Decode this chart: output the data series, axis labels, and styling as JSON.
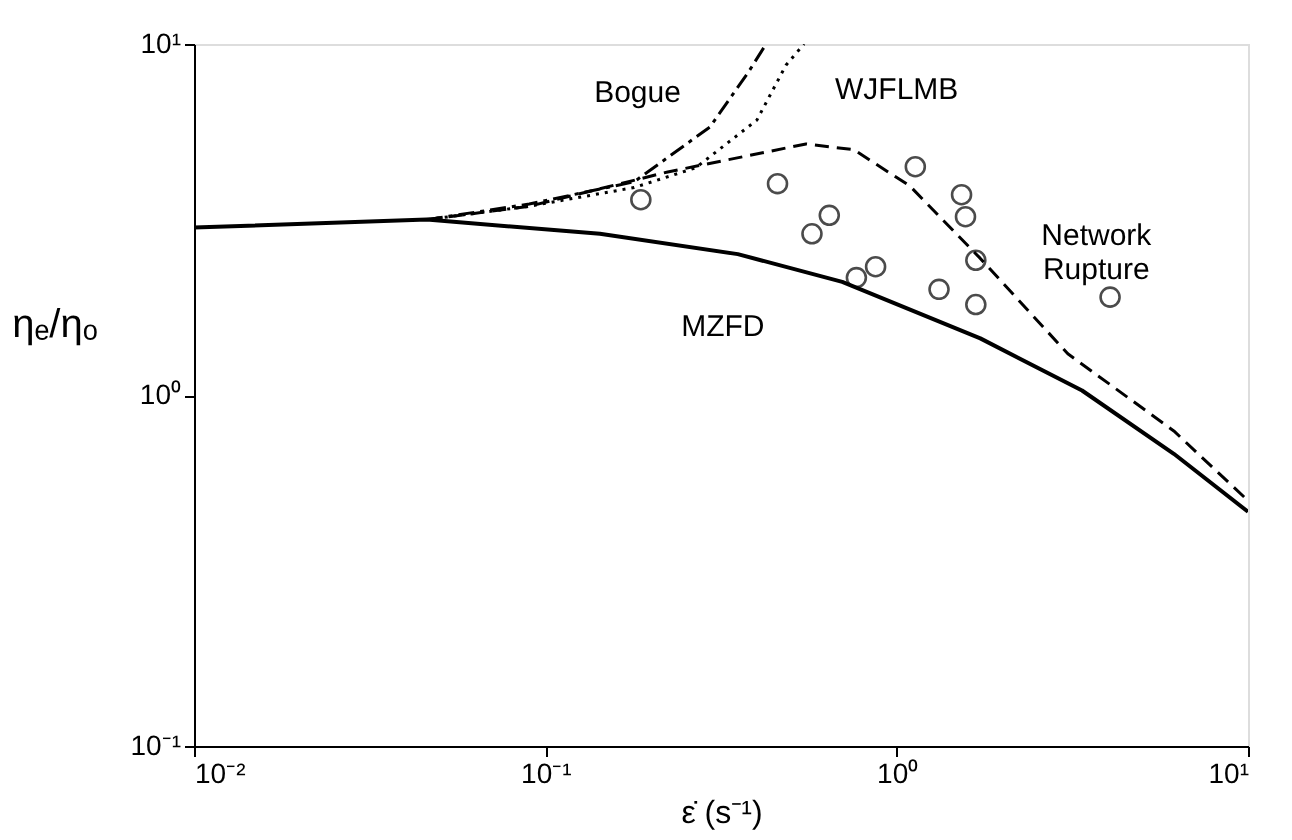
{
  "chart_data": {
    "type": "line",
    "xlabel": "ε̇ (s⁻¹)",
    "ylabel": "ηₑ/ηₒ",
    "log": "xy",
    "grid": false,
    "xlim": [
      0.01,
      10
    ],
    "ylim": [
      0.1,
      10
    ],
    "xticks": [
      {
        "value": 0.01,
        "label": "10⁻²"
      },
      {
        "value": 0.1,
        "label": "10⁻¹"
      },
      {
        "value": 1,
        "label": "10⁰"
      },
      {
        "value": 10,
        "label": "10¹"
      }
    ],
    "yticks": [
      {
        "value": 0.1,
        "label": "10⁻¹"
      },
      {
        "value": 1,
        "label": "10⁰"
      },
      {
        "value": 10,
        "label": "10¹"
      }
    ],
    "series": [
      {
        "name": "MZFD",
        "color": "#000000",
        "line_style": "solid",
        "marker": "none",
        "x": [
          0.01,
          0.046,
          0.143,
          0.353,
          0.7,
          1.73,
          3.37,
          6.15,
          10
        ],
        "values": [
          3.0,
          3.16,
          2.88,
          2.52,
          2.1,
          1.45,
          1.03,
          0.68,
          0.465
        ]
      },
      {
        "name": "Network Rupture",
        "color": "#000000",
        "line_style": "dashed",
        "marker": "none",
        "x": [
          0.046,
          0.09,
          0.223,
          0.552,
          0.755,
          1.09,
          1.73,
          3.07,
          6.15,
          10
        ],
        "values": [
          3.16,
          3.45,
          4.32,
          5.19,
          5.0,
          3.94,
          2.45,
          1.31,
          0.79,
          0.5
        ]
      },
      {
        "name": "Bogue",
        "color": "#000000",
        "line_style": "dashdot",
        "marker": "none",
        "x": [
          0.046,
          0.09,
          0.179,
          0.294,
          0.378,
          0.425
        ],
        "values": [
          3.16,
          3.5,
          4.05,
          5.8,
          8.3,
          10
        ]
      },
      {
        "name": "WJFLMB",
        "color": "#000000",
        "line_style": "dotted",
        "marker": "none",
        "x": [
          0.046,
          0.09,
          0.179,
          0.268,
          0.4,
          0.484,
          0.545
        ],
        "values": [
          3.16,
          3.45,
          3.9,
          4.44,
          6.07,
          8.7,
          10
        ]
      },
      {
        "type": "scatter",
        "color": "#000000",
        "marker": "circle",
        "x": [
          0.187,
          0.458,
          0.643,
          0.574,
          0.871,
          0.768,
          1.13,
          1.53,
          1.57,
          1.68,
          1.32,
          1.68,
          4.05
        ],
        "values": [
          3.6,
          4.0,
          3.25,
          2.88,
          2.32,
          2.16,
          4.47,
          3.72,
          3.22,
          2.42,
          2.0,
          1.81,
          1.9
        ]
      }
    ]
  }
}
